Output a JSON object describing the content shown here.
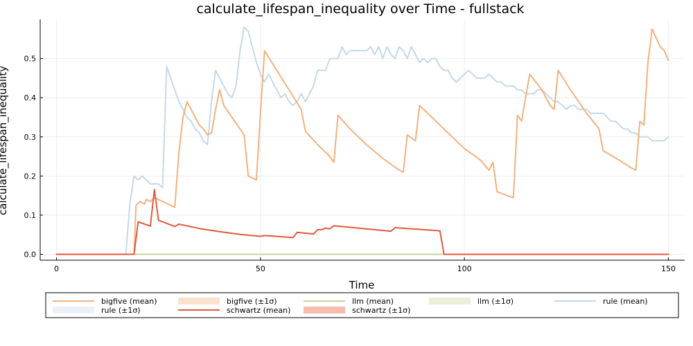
{
  "chart_data": {
    "type": "line",
    "title": "calculate_lifespan_inequality over Time - fullstack",
    "xlabel": "Time",
    "ylabel": "calculate_lifespan_inequality",
    "xlim": [
      -4,
      154
    ],
    "ylim": [
      -0.015,
      0.6
    ],
    "xticks": [
      0,
      50,
      100,
      150
    ],
    "yticks": [
      0.0,
      0.1,
      0.2,
      0.3,
      0.4,
      0.5
    ],
    "ytick_labels": [
      "0.0",
      "0.1",
      "0.2",
      "0.3",
      "0.4",
      "0.5"
    ],
    "grid": true,
    "legend_placement": "bottom",
    "legend": [
      {
        "label": "bigfive (mean)",
        "kind": "line",
        "color": "#f4b07f"
      },
      {
        "label": "bigfive (±1σ)",
        "kind": "band",
        "color": "#fbe2cf"
      },
      {
        "label": "llm (mean)",
        "kind": "line",
        "color": "#c9d49a"
      },
      {
        "label": "llm (±1σ)",
        "kind": "band",
        "color": "#ebeed8"
      },
      {
        "label": "rule (mean)",
        "kind": "line",
        "color": "#c4d8ea"
      },
      {
        "label": "rule (±1σ)",
        "kind": "band",
        "color": "#eaf1f8"
      },
      {
        "label": "schwartz (mean)",
        "kind": "line",
        "color": "#e4573c"
      },
      {
        "label": "schwartz (±1σ)",
        "kind": "band",
        "color": "#f6bcae"
      }
    ],
    "series": [
      {
        "name": "rule (mean)",
        "color": "#c4d8ea",
        "points": [
          [
            0,
            0
          ],
          [
            17,
            0
          ],
          [
            18,
            0.13
          ],
          [
            19,
            0.2
          ],
          [
            20,
            0.19
          ],
          [
            21,
            0.2
          ],
          [
            22,
            0.19
          ],
          [
            23,
            0.18
          ],
          [
            24,
            0.18
          ],
          [
            25,
            0.18
          ],
          [
            26,
            0.17
          ],
          [
            27,
            0.48
          ],
          [
            28,
            0.45
          ],
          [
            29,
            0.42
          ],
          [
            30,
            0.39
          ],
          [
            31,
            0.37
          ],
          [
            32,
            0.35
          ],
          [
            33,
            0.34
          ],
          [
            34,
            0.32
          ],
          [
            35,
            0.31
          ],
          [
            36,
            0.29
          ],
          [
            37,
            0.28
          ],
          [
            38,
            0.39
          ],
          [
            39,
            0.47
          ],
          [
            40,
            0.45
          ],
          [
            41,
            0.43
          ],
          [
            42,
            0.41
          ],
          [
            43,
            0.4
          ],
          [
            44,
            0.43
          ],
          [
            45,
            0.52
          ],
          [
            46,
            0.58
          ],
          [
            47,
            0.57
          ],
          [
            48,
            0.53
          ],
          [
            49,
            0.49
          ],
          [
            50,
            0.46
          ],
          [
            51,
            0.44
          ],
          [
            52,
            0.46
          ],
          [
            53,
            0.44
          ],
          [
            54,
            0.42
          ],
          [
            55,
            0.4
          ],
          [
            56,
            0.41
          ],
          [
            57,
            0.39
          ],
          [
            58,
            0.38
          ],
          [
            59,
            0.39
          ],
          [
            60,
            0.41
          ],
          [
            61,
            0.39
          ],
          [
            62,
            0.41
          ],
          [
            63,
            0.43
          ],
          [
            64,
            0.47
          ],
          [
            65,
            0.47
          ],
          [
            66,
            0.47
          ],
          [
            67,
            0.5
          ],
          [
            68,
            0.5
          ],
          [
            69,
            0.5
          ],
          [
            70,
            0.53
          ],
          [
            71,
            0.51
          ],
          [
            72,
            0.52
          ],
          [
            73,
            0.52
          ],
          [
            74,
            0.52
          ],
          [
            75,
            0.52
          ],
          [
            76,
            0.52
          ],
          [
            77,
            0.53
          ],
          [
            78,
            0.51
          ],
          [
            79,
            0.53
          ],
          [
            80,
            0.5
          ],
          [
            81,
            0.53
          ],
          [
            82,
            0.51
          ],
          [
            83,
            0.5
          ],
          [
            84,
            0.53
          ],
          [
            85,
            0.52
          ],
          [
            86,
            0.5
          ],
          [
            87,
            0.53
          ],
          [
            88,
            0.51
          ],
          [
            89,
            0.49
          ],
          [
            90,
            0.5
          ],
          [
            91,
            0.49
          ],
          [
            92,
            0.5
          ],
          [
            93,
            0.5
          ],
          [
            94,
            0.48
          ],
          [
            95,
            0.47
          ],
          [
            96,
            0.47
          ],
          [
            97,
            0.45
          ],
          [
            98,
            0.44
          ],
          [
            99,
            0.45
          ],
          [
            100,
            0.46
          ],
          [
            101,
            0.47
          ],
          [
            102,
            0.46
          ],
          [
            103,
            0.45
          ],
          [
            104,
            0.45
          ],
          [
            105,
            0.45
          ],
          [
            106,
            0.46
          ],
          [
            107,
            0.45
          ],
          [
            108,
            0.44
          ],
          [
            109,
            0.44
          ],
          [
            110,
            0.43
          ],
          [
            111,
            0.43
          ],
          [
            112,
            0.43
          ],
          [
            113,
            0.42
          ],
          [
            114,
            0.42
          ],
          [
            115,
            0.41
          ],
          [
            116,
            0.41
          ],
          [
            117,
            0.41
          ],
          [
            118,
            0.42
          ],
          [
            119,
            0.42
          ],
          [
            120,
            0.41
          ],
          [
            121,
            0.4
          ],
          [
            122,
            0.39
          ],
          [
            123,
            0.39
          ],
          [
            124,
            0.38
          ],
          [
            125,
            0.37
          ],
          [
            126,
            0.38
          ],
          [
            127,
            0.38
          ],
          [
            128,
            0.37
          ],
          [
            129,
            0.37
          ],
          [
            130,
            0.37
          ],
          [
            131,
            0.36
          ],
          [
            132,
            0.36
          ],
          [
            133,
            0.36
          ],
          [
            134,
            0.36
          ],
          [
            135,
            0.35
          ],
          [
            136,
            0.34
          ],
          [
            137,
            0.34
          ],
          [
            138,
            0.33
          ],
          [
            139,
            0.32
          ],
          [
            140,
            0.32
          ],
          [
            141,
            0.31
          ],
          [
            142,
            0.31
          ],
          [
            143,
            0.3
          ],
          [
            144,
            0.3
          ],
          [
            145,
            0.3
          ],
          [
            146,
            0.29
          ],
          [
            147,
            0.29
          ],
          [
            148,
            0.29
          ],
          [
            149,
            0.29
          ],
          [
            150,
            0.3
          ]
        ]
      },
      {
        "name": "bigfive (mean)",
        "color": "#f4b07f",
        "points": [
          [
            0,
            0
          ],
          [
            19,
            0
          ],
          [
            19.5,
            0.125
          ],
          [
            20.5,
            0.135
          ],
          [
            21.5,
            0.128
          ],
          [
            22,
            0.14
          ],
          [
            23,
            0.135
          ],
          [
            24,
            0.145
          ],
          [
            25,
            0.14
          ],
          [
            27,
            0.13
          ],
          [
            29,
            0.12
          ],
          [
            30,
            0.26
          ],
          [
            31,
            0.35
          ],
          [
            32,
            0.39
          ],
          [
            33,
            0.37
          ],
          [
            34,
            0.35
          ],
          [
            35,
            0.33
          ],
          [
            36,
            0.32
          ],
          [
            37,
            0.305
          ],
          [
            38,
            0.31
          ],
          [
            39,
            0.37
          ],
          [
            40,
            0.42
          ],
          [
            41,
            0.38
          ],
          [
            43,
            0.35
          ],
          [
            45,
            0.32
          ],
          [
            46,
            0.305
          ],
          [
            47,
            0.2
          ],
          [
            49,
            0.19
          ],
          [
            50,
            0.36
          ],
          [
            51,
            0.52
          ],
          [
            54,
            0.47
          ],
          [
            57,
            0.42
          ],
          [
            60,
            0.37
          ],
          [
            61,
            0.315
          ],
          [
            64,
            0.28
          ],
          [
            67,
            0.25
          ],
          [
            68,
            0.235
          ],
          [
            69,
            0.355
          ],
          [
            72,
            0.32
          ],
          [
            76,
            0.28
          ],
          [
            80,
            0.245
          ],
          [
            84,
            0.215
          ],
          [
            85,
            0.21
          ],
          [
            86,
            0.305
          ],
          [
            88,
            0.29
          ],
          [
            89,
            0.38
          ],
          [
            92,
            0.35
          ],
          [
            96,
            0.31
          ],
          [
            100,
            0.27
          ],
          [
            104,
            0.24
          ],
          [
            106,
            0.215
          ],
          [
            107,
            0.235
          ],
          [
            108,
            0.16
          ],
          [
            111,
            0.148
          ],
          [
            112,
            0.145
          ],
          [
            113,
            0.355
          ],
          [
            114,
            0.34
          ],
          [
            116,
            0.46
          ],
          [
            119,
            0.42
          ],
          [
            121,
            0.38
          ],
          [
            122,
            0.37
          ],
          [
            123,
            0.47
          ],
          [
            126,
            0.42
          ],
          [
            130,
            0.36
          ],
          [
            133,
            0.32
          ],
          [
            134,
            0.265
          ],
          [
            138,
            0.24
          ],
          [
            141,
            0.22
          ],
          [
            142,
            0.215
          ],
          [
            143,
            0.34
          ],
          [
            144,
            0.33
          ],
          [
            145,
            0.49
          ],
          [
            146,
            0.575
          ],
          [
            148,
            0.53
          ],
          [
            149,
            0.52
          ],
          [
            150,
            0.495
          ]
        ]
      },
      {
        "name": "llm (mean)",
        "color": "#c9d49a",
        "points": [
          [
            0,
            0
          ],
          [
            150,
            0
          ]
        ]
      },
      {
        "name": "schwartz (mean)",
        "color": "#e4573c",
        "points": [
          [
            0,
            0
          ],
          [
            19,
            0
          ],
          [
            20,
            0.083
          ],
          [
            23,
            0.072
          ],
          [
            24,
            0.165
          ],
          [
            25,
            0.087
          ],
          [
            28,
            0.075
          ],
          [
            29,
            0.071
          ],
          [
            30,
            0.077
          ],
          [
            35,
            0.066
          ],
          [
            40,
            0.058
          ],
          [
            45,
            0.051
          ],
          [
            50,
            0.046
          ],
          [
            51,
            0.048
          ],
          [
            58,
            0.043
          ],
          [
            59,
            0.056
          ],
          [
            63,
            0.052
          ],
          [
            64,
            0.063
          ],
          [
            65,
            0.063
          ],
          [
            66,
            0.067
          ],
          [
            67,
            0.065
          ],
          [
            68,
            0.073
          ],
          [
            75,
            0.066
          ],
          [
            82,
            0.059
          ],
          [
            83,
            0.068
          ],
          [
            90,
            0.063
          ],
          [
            94,
            0.06
          ],
          [
            95,
            0
          ],
          [
            150,
            0
          ]
        ]
      }
    ]
  }
}
